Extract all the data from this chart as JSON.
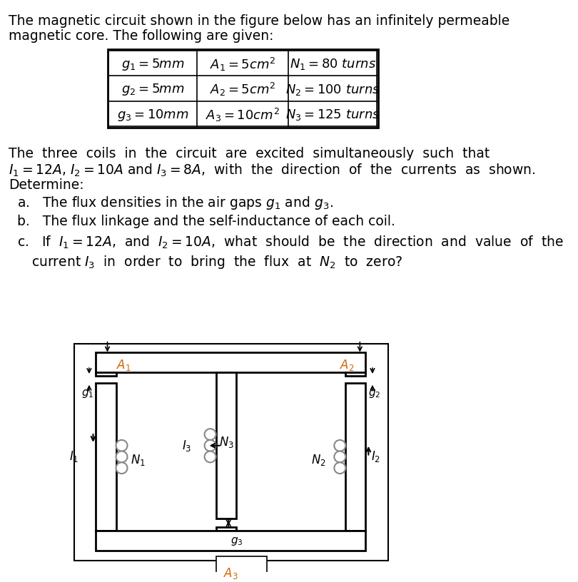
{
  "bg_color": "#ffffff",
  "text_color": "#000000",
  "orange_color": "#cc6600",
  "title_line1": "The magnetic circuit shown in the figure below has an infinitely permeable",
  "title_line2": "magnetic core. The following are given:",
  "table": {
    "rows": [
      [
        "$g_1 = 5mm$",
        "$A_1 = 5cm^2$",
        "$N_1 = 80\\ turns$"
      ],
      [
        "$g_2 = 5mm$",
        "$A_2 = 5cm^2$",
        "$N_2 = 100\\ turns$"
      ],
      [
        "$g_3 = 10mm$",
        "$A_3 = 10cm^2$",
        "$N_3 = 125\\ turns$"
      ]
    ]
  },
  "para1_line1": "The  three  coils  in  the  circuit  are  excited  simultaneously  such  that",
  "para1_line2": "$I_1 = 12A$,  $I_2 = 10A$  and  $I_3 = 8A$,  with  the  direction  of  the  currents  as  shown.",
  "para1_line3": "Determine:",
  "item_a": "a.   The flux densities in the air gaps $g_1$ and $g_3$.",
  "item_b": "b.   The flux linkage and the self-inductance of each coil.",
  "item_c1": "c.   If  $I_1 = 12A$,  and  $I_2 = 10A$,  what  should  be  the  direction  and  value  of  the",
  "item_c2": "      current  $I_3$  in  order  to  bring  the  flux  at  $N_2$  to  zero?"
}
